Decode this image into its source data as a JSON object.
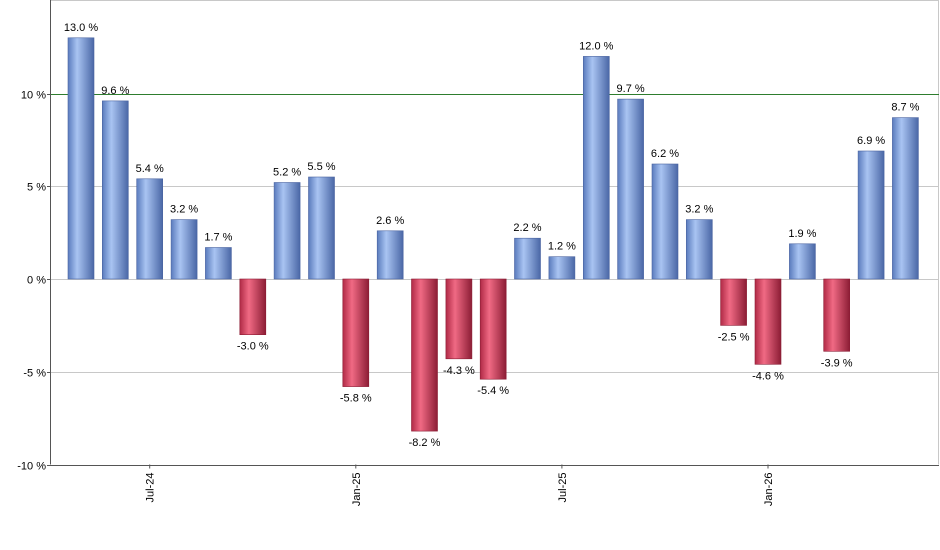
{
  "chart_data": {
    "type": "bar",
    "title": "",
    "xlabel": "",
    "ylabel": "",
    "ylim": [
      -10,
      14
    ],
    "y_ticks": [
      {
        "value": -10,
        "label": "-10 %"
      },
      {
        "value": -5,
        "label": "-5 %"
      },
      {
        "value": 0,
        "label": "0 %"
      },
      {
        "value": 5,
        "label": "5 %"
      },
      {
        "value": 10,
        "label": "10 %"
      }
    ],
    "x_ticks": [
      {
        "index": 2,
        "label": "Jul-24"
      },
      {
        "index": 8,
        "label": "Jan-25"
      },
      {
        "index": 14,
        "label": "Jul-25"
      },
      {
        "index": 20,
        "label": "Jan-26"
      }
    ],
    "reference_line": {
      "value": 10,
      "color": "#2e7d2e"
    },
    "grid": true,
    "colors": {
      "positive": "#6f93d6",
      "negative": "#c23752"
    },
    "values": [
      13.0,
      9.6,
      5.4,
      3.2,
      1.7,
      -3.0,
      5.2,
      5.5,
      -5.8,
      2.6,
      -8.2,
      -4.3,
      -5.4,
      2.2,
      1.2,
      12.0,
      9.7,
      6.2,
      3.2,
      -2.5,
      -4.6,
      1.9,
      -3.9,
      6.9,
      8.7
    ],
    "labels": [
      "13.0 %",
      "9.6 %",
      "5.4 %",
      "3.2 %",
      "1.7 %",
      "-3.0 %",
      "5.2 %",
      "5.5 %",
      "-5.8 %",
      "2.6 %",
      "-8.2 %",
      "-4.3 %",
      "-5.4 %",
      "2.2 %",
      "1.2 %",
      "12.0 %",
      "9.7 %",
      "6.2 %",
      "3.2 %",
      "-2.5 %",
      "-4.6 %",
      "1.9 %",
      "-3.9 %",
      "6.9 %",
      "8.7 %"
    ]
  }
}
